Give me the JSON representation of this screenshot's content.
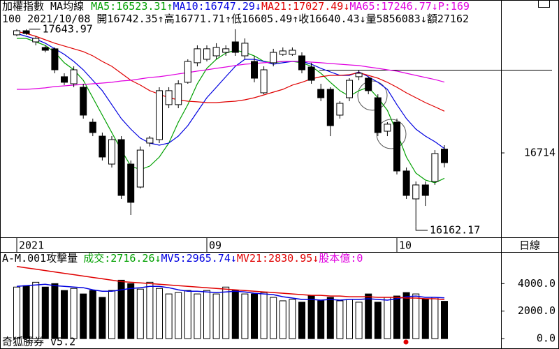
{
  "chart_data": [
    {
      "type": "candlestick",
      "title": "加權指數 MA均線",
      "separator": ":",
      "extra": "P:169",
      "period": "100",
      "date": "2021/10/08",
      "ohlc_labels": [
        "開",
        "高",
        "低",
        "收"
      ],
      "ohlc_arrows": [
        "↑",
        "↑",
        "↑",
        "↓"
      ],
      "volume_label": "量",
      "volume": 5856083,
      "volume_arrow": "↓",
      "amount_label": "額",
      "amount": "27162",
      "categories": [
        "2021",
        null,
        null,
        null,
        null,
        null,
        null,
        null,
        null,
        null,
        null,
        null,
        null,
        null,
        null,
        null,
        null,
        null,
        null,
        null,
        "09",
        null,
        null,
        null,
        null,
        null,
        null,
        null,
        null,
        null,
        null,
        null,
        null,
        null,
        null,
        null,
        null,
        null,
        null,
        null,
        "10",
        null,
        null,
        null,
        null,
        null
      ],
      "open": [
        17602,
        17633,
        17549,
        17507,
        17497,
        17287,
        17234,
        17208,
        16945,
        16840,
        16630,
        16814,
        16630,
        16457,
        16788,
        16814,
        17077,
        17077,
        17245,
        17392,
        17418,
        17444,
        17470,
        17549,
        17444,
        17402,
        17166,
        17392,
        17455,
        17455,
        17444,
        17360,
        17192,
        17192,
        16998,
        17129,
        17287,
        17276,
        17129,
        16877,
        16945,
        16578,
        16368,
        16473,
        16499,
        16742.35
      ],
      "high": [
        17644,
        17643.97,
        17591,
        17523,
        17507,
        17313,
        17365,
        17234,
        16972,
        16867,
        16840,
        16840,
        16657,
        16762,
        16840,
        17208,
        17208,
        17260,
        17418,
        17523,
        17523,
        17539,
        17523,
        17644,
        17575,
        17444,
        17365,
        17497,
        17507,
        17507,
        17470,
        17392,
        17234,
        17208,
        17103,
        17276,
        17339,
        17287,
        17155,
        16945,
        16972,
        16604,
        16499,
        16499,
        16735,
        16771.71
      ],
      "low": [
        17591,
        17602,
        17523,
        17470,
        17313,
        17224,
        17208,
        16972,
        16840,
        16657,
        16604,
        16368,
        16247,
        16447,
        16762,
        16788,
        17050,
        17050,
        17234,
        17365,
        17402,
        17418,
        17444,
        17444,
        17418,
        17245,
        17155,
        17365,
        17444,
        17444,
        17313,
        17234,
        17103,
        16840,
        16972,
        17103,
        17260,
        17155,
        16840,
        16840,
        16552,
        16368,
        16162.17,
        16315,
        16473,
        16605.49
      ],
      "close": [
        17633,
        17612,
        17575,
        17486,
        17339,
        17245,
        17339,
        16998,
        16867,
        16683,
        16814,
        16394,
        16342,
        16735,
        16825,
        17182,
        17182,
        17234,
        17402,
        17497,
        17497,
        17507,
        17497,
        17470,
        17539,
        17276,
        17339,
        17470,
        17481,
        17486,
        17339,
        17260,
        17129,
        16919,
        17087,
        17260,
        17313,
        17182,
        16867,
        16930,
        16578,
        16394,
        16473,
        16394,
        16709,
        16640.43
      ],
      "series": [
        {
          "name": "MA5",
          "color": "#00a000",
          "arrow": "↑",
          "values": [
            17575,
            17575,
            17549,
            17523,
            17470,
            17392,
            17339,
            17260,
            17129,
            16998,
            16867,
            16735,
            16615,
            16588,
            16615,
            16683,
            16788,
            16945,
            17077,
            17234,
            17350,
            17418,
            17465,
            17486,
            17470,
            17444,
            17402,
            17392,
            17402,
            17402,
            17392,
            17365,
            17313,
            17245,
            17182,
            17140,
            17182,
            17208,
            17129,
            17034,
            16867,
            16683,
            16562,
            16510,
            16489,
            16523.31
          ]
        },
        {
          "name": "MA10",
          "color": "#0000e0",
          "arrow": "↓",
          "values": [
            17612,
            17591,
            17570,
            17539,
            17497,
            17455,
            17402,
            17339,
            17260,
            17182,
            17077,
            16972,
            16893,
            16825,
            16788,
            16772,
            16788,
            16840,
            16919,
            17024,
            17129,
            17208,
            17287,
            17365,
            17418,
            17418,
            17402,
            17381,
            17392,
            17402,
            17402,
            17381,
            17350,
            17323,
            17297,
            17297,
            17323,
            17287,
            17245,
            17192,
            17077,
            16972,
            16893,
            16840,
            16798,
            16747.29
          ]
        },
        {
          "name": "MA21",
          "color": "#e00000",
          "arrow": "↓",
          "values": [
            17628,
            17612,
            17591,
            17565,
            17539,
            17518,
            17497,
            17476,
            17444,
            17402,
            17365,
            17313,
            17260,
            17224,
            17182,
            17155,
            17129,
            17113,
            17103,
            17098,
            17092,
            17092,
            17098,
            17103,
            17113,
            17129,
            17150,
            17171,
            17192,
            17224,
            17245,
            17271,
            17287,
            17297,
            17297,
            17302,
            17318,
            17297,
            17276,
            17245,
            17208,
            17166,
            17129,
            17092,
            17061,
            17027.49
          ]
        },
        {
          "name": "MA65",
          "color": "#e000e0",
          "arrow": "↓",
          "values": [
            17192,
            17192,
            17197,
            17203,
            17213,
            17218,
            17224,
            17229,
            17234,
            17239,
            17245,
            17255,
            17260,
            17271,
            17281,
            17287,
            17297,
            17308,
            17318,
            17329,
            17339,
            17350,
            17360,
            17371,
            17381,
            17386,
            17392,
            17397,
            17402,
            17402,
            17402,
            17397,
            17392,
            17386,
            17381,
            17376,
            17371,
            17360,
            17350,
            17339,
            17329,
            17313,
            17297,
            17281,
            17266,
            17246.77
          ]
        }
      ],
      "ylim": [
        16079,
        17864
      ],
      "yticks": [
        16714
      ],
      "period_label": "日線"
    },
    {
      "type": "bar",
      "title": "A-M.001攻擊量",
      "separator": ":",
      "name": "成交",
      "color": "#00a000",
      "arrow": "↓",
      "values": [
        3750,
        3850,
        4100,
        3750,
        4000,
        3500,
        3650,
        3250,
        3500,
        3000,
        3500,
        4250,
        4000,
        3600,
        4100,
        3650,
        3250,
        3350,
        3500,
        3250,
        3500,
        3250,
        3750,
        3500,
        3250,
        3250,
        3350,
        3000,
        2750,
        2850,
        2650,
        3150,
        2750,
        3000,
        2750,
        2850,
        2650,
        3250,
        2650,
        3000,
        3100,
        3350,
        3250,
        2900,
        3000,
        2716.26
      ],
      "series": [
        {
          "name": "MV5",
          "color": "#0000e0",
          "arrow": "↓",
          "values": [
            3800,
            3850,
            3900,
            3950,
            3850,
            3800,
            3750,
            3700,
            3550,
            3450,
            3450,
            3550,
            3650,
            3700,
            3800,
            3800,
            3700,
            3550,
            3450,
            3450,
            3400,
            3350,
            3400,
            3450,
            3400,
            3300,
            3250,
            3200,
            3050,
            2950,
            2850,
            2850,
            2800,
            2850,
            2800,
            2850,
            2850,
            2900,
            2850,
            2800,
            2900,
            3050,
            3100,
            3000,
            3000,
            2965.74
          ]
        },
        {
          "name": "MV21",
          "color": "#e00000",
          "arrow": "↓",
          "values": [
            5250,
            5150,
            5050,
            4950,
            4850,
            4750,
            4650,
            4550,
            4450,
            4350,
            4250,
            4150,
            4100,
            4050,
            4000,
            3950,
            3900,
            3850,
            3800,
            3750,
            3700,
            3650,
            3600,
            3550,
            3500,
            3450,
            3400,
            3350,
            3300,
            3250,
            3200,
            3150,
            3150,
            3100,
            3100,
            3050,
            3050,
            3050,
            3000,
            3000,
            3000,
            2950,
            2950,
            2900,
            2900,
            2830.95
          ]
        }
      ],
      "capital_label": "股本億",
      "capital": 0,
      "capital_color": "#e000e0",
      "ylim": [
        -500,
        6250
      ],
      "yticks": [
        {
          "value": 4000,
          "label": "4000.0"
        },
        {
          "value": 2000,
          "label": "2000.0"
        },
        {
          "value": 0,
          "label": "0.0"
        }
      ],
      "footer": "奇狐勝券 v5.2"
    }
  ]
}
